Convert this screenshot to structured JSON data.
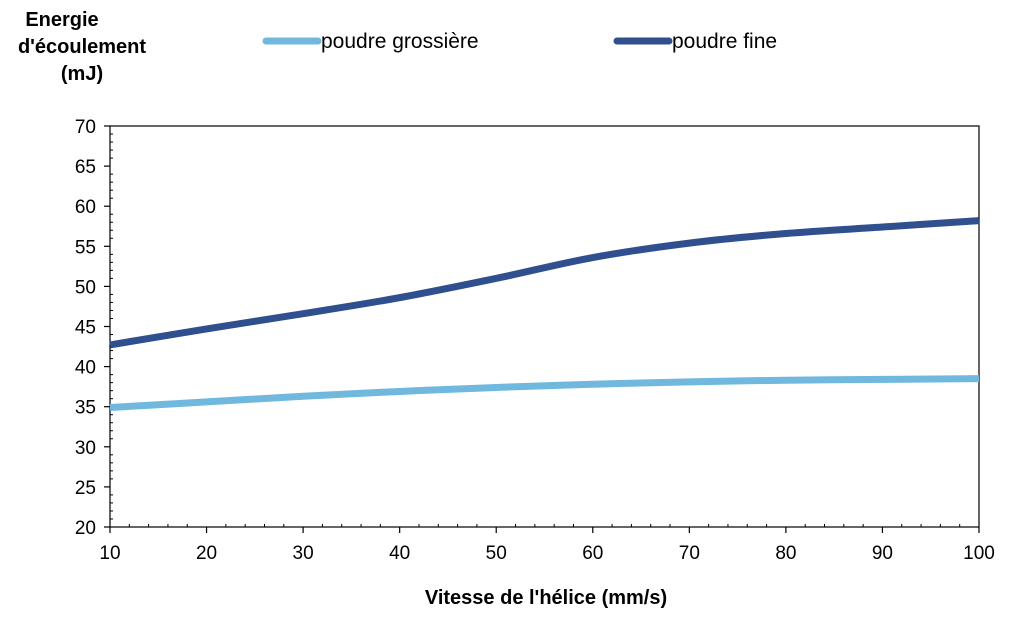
{
  "chart_data": {
    "type": "line",
    "ylabel_lines": [
      "Energie",
      "d'écoulement",
      "(mJ)"
    ],
    "xlabel": "Vitesse de l'hélice (mm/s)",
    "x": [
      10,
      20,
      30,
      40,
      50,
      60,
      70,
      80,
      90,
      100
    ],
    "xlim": [
      10,
      100
    ],
    "ylim": [
      20,
      70
    ],
    "x_ticks": [
      "10",
      "20",
      "30",
      "40",
      "50",
      "60",
      "70",
      "80",
      "90",
      "100"
    ],
    "y_ticks": [
      "20",
      "25",
      "30",
      "35",
      "40",
      "45",
      "50",
      "55",
      "60",
      "65",
      "70"
    ],
    "grid": false,
    "legend_position": "top",
    "series": [
      {
        "name": "poudre grossière",
        "color": "#70b8de",
        "values": [
          34.9,
          35.6,
          36.3,
          36.9,
          37.4,
          37.8,
          38.1,
          38.3,
          38.4,
          38.5
        ]
      },
      {
        "name": "poudre fine",
        "color": "#2f4f8f",
        "values": [
          42.7,
          44.7,
          46.6,
          48.6,
          51.0,
          53.6,
          55.4,
          56.6,
          57.4,
          58.2
        ]
      }
    ]
  }
}
